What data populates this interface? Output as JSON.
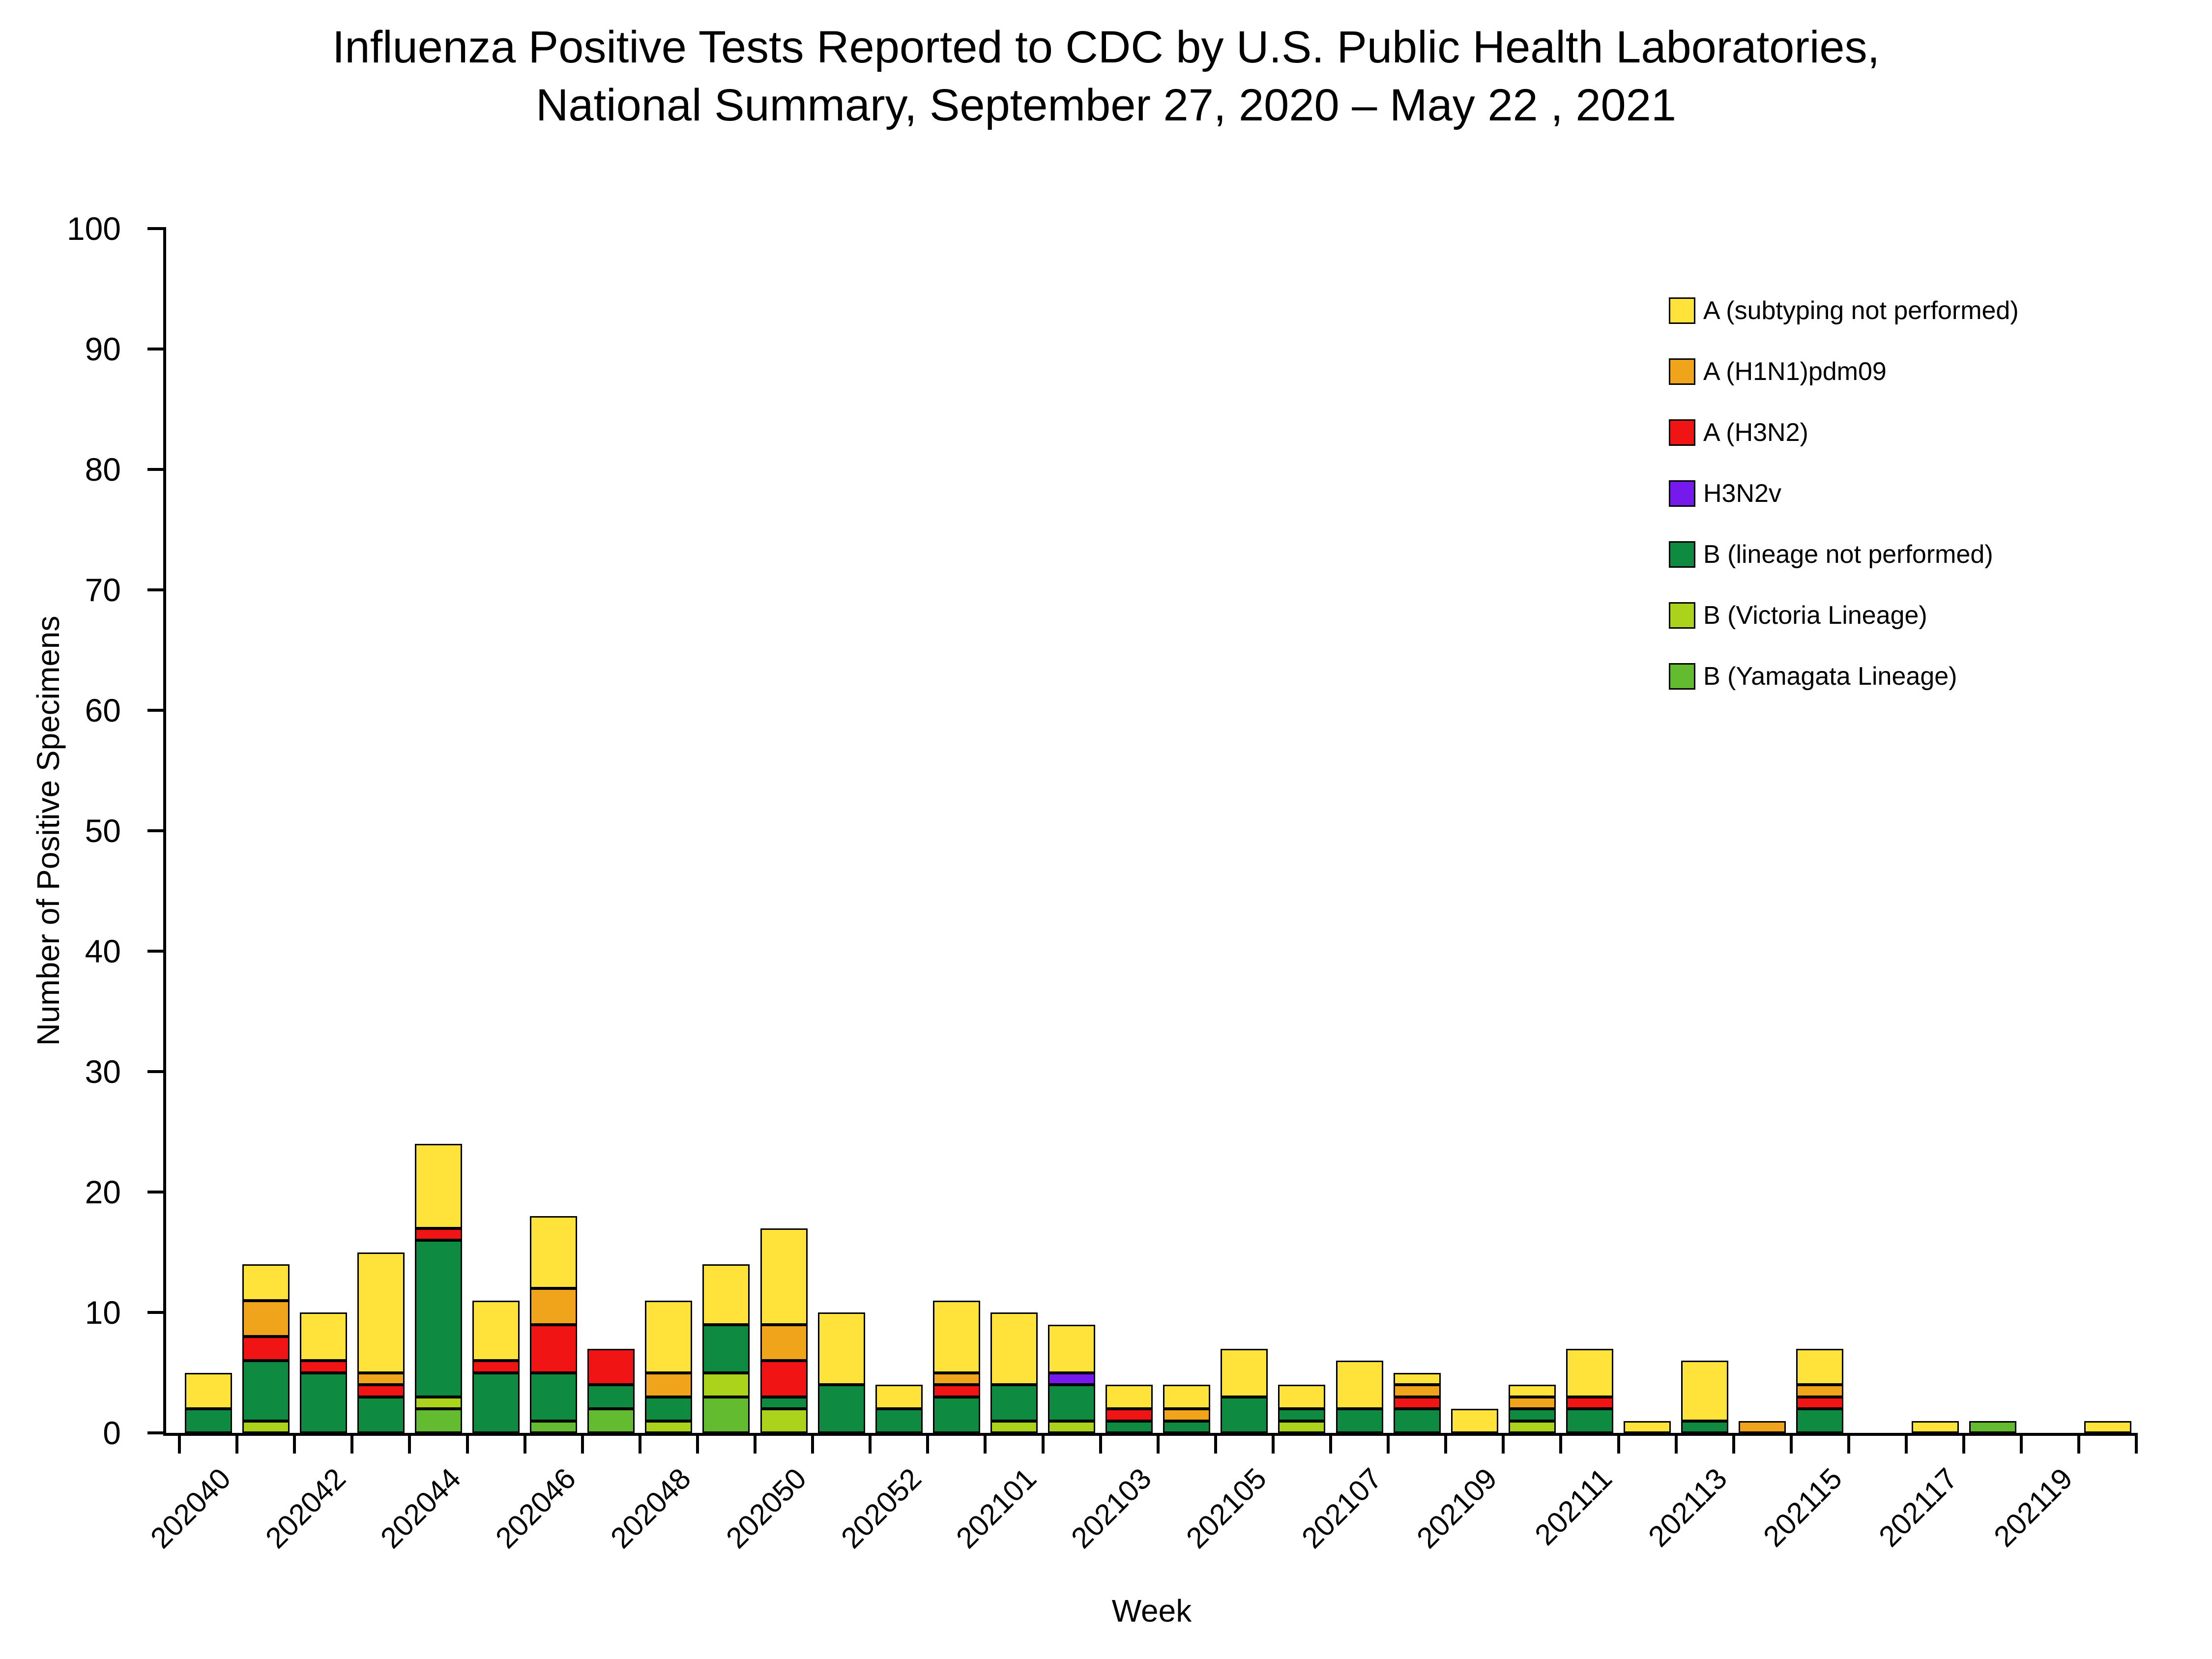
{
  "title": {
    "line1": "Influenza Positive Tests Reported to CDC by U.S. Public Health Laboratories,",
    "line2": "National Summary, September 27, 2020 – May 22 , 2021"
  },
  "y_axis": {
    "label": "Number of Positive Specimens",
    "min": 0,
    "max": 100,
    "step": 10
  },
  "x_axis": {
    "label": "Week",
    "label_every_n_categories": 2
  },
  "legend": [
    {
      "label": "A (subtyping not performed)",
      "color": "#FFE33A"
    },
    {
      "label": "A (H1N1)pdm09",
      "color": "#F0A41C"
    },
    {
      "label": "A (H3N2)",
      "color": "#F01414"
    },
    {
      "label": "H3N2v",
      "color": "#7519EC"
    },
    {
      "label": "B (lineage not performed)",
      "color": "#0F8A41"
    },
    {
      "label": "B (Victoria Lineage)",
      "color": "#ABD31C"
    },
    {
      "label": "B (Yamagata Lineage)",
      "color": "#63BC30"
    }
  ],
  "chart_data": {
    "type": "bar",
    "stacked": true,
    "title": "Influenza Positive Tests Reported to CDC by U.S. Public Health Laboratories, National Summary, September 27, 2020 – May 22 , 2021",
    "xlabel": "Week",
    "ylabel": "Number of Positive Specimens",
    "ylim": [
      0,
      100
    ],
    "grid": false,
    "legend_position": "top-right-inside",
    "categories": [
      "202040",
      "202041",
      "202042",
      "202043",
      "202044",
      "202045",
      "202046",
      "202047",
      "202048",
      "202049",
      "202050",
      "202051",
      "202052",
      "202053",
      "202101",
      "202102",
      "202103",
      "202104",
      "202105",
      "202106",
      "202107",
      "202108",
      "202109",
      "202110",
      "202111",
      "202112",
      "202113",
      "202114",
      "202115",
      "202116",
      "202117",
      "202118",
      "202119",
      "202120"
    ],
    "stack_order_bottom_to_top": [
      "B (Yamagata Lineage)",
      "B (Victoria Lineage)",
      "B (lineage not performed)",
      "H3N2v",
      "A (H3N2)",
      "A (H1N1)pdm09",
      "A (subtyping not performed)"
    ],
    "series": [
      {
        "name": "A (subtyping not performed)",
        "color": "#FFE33A",
        "values": [
          3,
          3,
          4,
          10,
          7,
          5,
          6,
          0,
          6,
          5,
          8,
          6,
          2,
          6,
          6,
          4,
          2,
          2,
          4,
          2,
          4,
          1,
          2,
          1,
          4,
          1,
          5,
          0,
          3,
          0,
          1,
          0,
          0,
          1
        ]
      },
      {
        "name": "A (H1N1)pdm09",
        "color": "#F0A41C",
        "values": [
          0,
          3,
          0,
          1,
          0,
          0,
          3,
          0,
          2,
          0,
          3,
          0,
          0,
          1,
          0,
          0,
          0,
          1,
          0,
          0,
          0,
          1,
          0,
          1,
          0,
          0,
          0,
          1,
          1,
          0,
          0,
          0,
          0,
          0
        ]
      },
      {
        "name": "A (H3N2)",
        "color": "#F01414",
        "values": [
          0,
          2,
          1,
          1,
          1,
          1,
          4,
          3,
          0,
          0,
          3,
          0,
          0,
          1,
          0,
          0,
          1,
          0,
          0,
          0,
          0,
          1,
          0,
          0,
          1,
          0,
          0,
          0,
          1,
          0,
          0,
          0,
          0,
          0
        ]
      },
      {
        "name": "H3N2v",
        "color": "#7519EC",
        "values": [
          0,
          0,
          0,
          0,
          0,
          0,
          0,
          0,
          0,
          0,
          0,
          0,
          0,
          0,
          0,
          1,
          0,
          0,
          0,
          0,
          0,
          0,
          0,
          0,
          0,
          0,
          0,
          0,
          0,
          0,
          0,
          0,
          0,
          0
        ]
      },
      {
        "name": "B (lineage not performed)",
        "color": "#0F8A41",
        "values": [
          2,
          5,
          5,
          3,
          13,
          5,
          4,
          2,
          2,
          4,
          1,
          4,
          2,
          3,
          3,
          3,
          1,
          1,
          3,
          1,
          2,
          2,
          0,
          1,
          2,
          0,
          1,
          0,
          2,
          0,
          0,
          0,
          0,
          0
        ]
      },
      {
        "name": "B (Victoria Lineage)",
        "color": "#ABD31C",
        "values": [
          0,
          1,
          0,
          0,
          1,
          0,
          0,
          0,
          1,
          2,
          2,
          0,
          0,
          0,
          1,
          1,
          0,
          0,
          0,
          1,
          0,
          0,
          0,
          1,
          0,
          0,
          0,
          0,
          0,
          0,
          0,
          0,
          0,
          0
        ]
      },
      {
        "name": "B (Yamagata Lineage)",
        "color": "#63BC30",
        "values": [
          0,
          0,
          0,
          0,
          2,
          0,
          1,
          2,
          0,
          3,
          0,
          0,
          0,
          0,
          0,
          0,
          0,
          0,
          0,
          0,
          0,
          0,
          0,
          0,
          0,
          0,
          0,
          0,
          0,
          0,
          0,
          1,
          0,
          0
        ]
      }
    ],
    "totals": [
      5,
      14,
      10,
      15,
      24,
      11,
      18,
      7,
      11,
      14,
      17,
      10,
      4,
      11,
      10,
      9,
      4,
      4,
      7,
      4,
      6,
      5,
      2,
      4,
      7,
      1,
      6,
      1,
      7,
      0,
      1,
      1,
      0,
      1
    ]
  }
}
